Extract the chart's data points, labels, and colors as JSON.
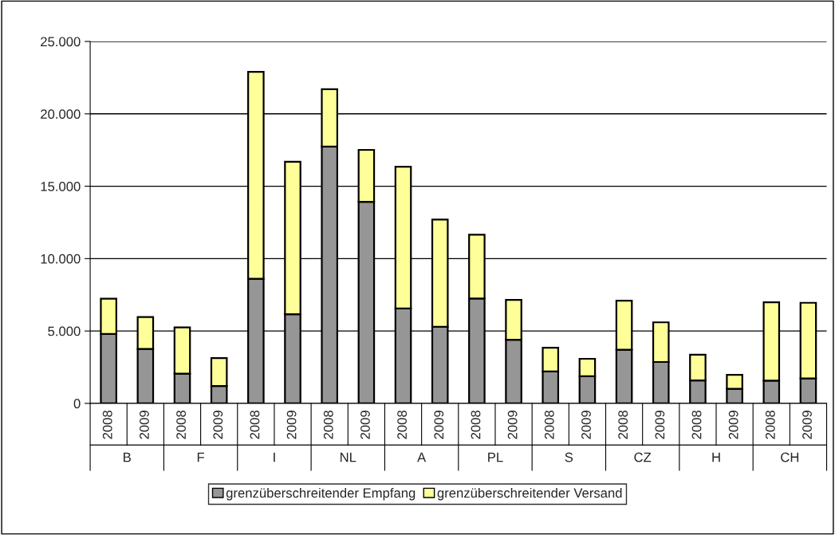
{
  "chart_data": {
    "type": "bar",
    "stacked": true,
    "grid": "y",
    "legend": "bottom",
    "categories": [
      "2008",
      "2009",
      "2008",
      "2009",
      "2008",
      "2009",
      "2008",
      "2009",
      "2008",
      "2009",
      "2008",
      "2009",
      "2008",
      "2009",
      "2008",
      "2009",
      "2008",
      "2009",
      "2008",
      "2009"
    ],
    "annotations": [
      "B",
      "F",
      "I",
      "NL",
      "A",
      "PL",
      "S",
      "CZ",
      "H",
      "CH"
    ],
    "series": [
      {
        "name": "grenzüberschreitender Empfang",
        "color": "#969696",
        "values": [
          4790,
          3760,
          2060,
          1200,
          8610,
          6160,
          17740,
          13920,
          6560,
          5290,
          7250,
          4390,
          2210,
          1880,
          3710,
          2860,
          1590,
          1010,
          1570,
          1730
        ]
      },
      {
        "name": "grenzüberschreitender Versand",
        "color": "#ffff99",
        "values": [
          2440,
          2210,
          3190,
          1930,
          14290,
          10530,
          3960,
          3590,
          9790,
          7410,
          4400,
          2760,
          1640,
          1200,
          3390,
          2740,
          1770,
          960,
          5420,
          5220
        ]
      }
    ],
    "ylim": [
      0,
      25000
    ],
    "yticks": [
      {
        "value": 0,
        "label": "0"
      },
      {
        "value": 5000,
        "label": "5.000"
      },
      {
        "value": 10000,
        "label": "10.000"
      },
      {
        "value": 15000,
        "label": "15.000"
      },
      {
        "value": 20000,
        "label": "20.000"
      },
      {
        "value": 25000,
        "label": "25.000"
      }
    ]
  }
}
